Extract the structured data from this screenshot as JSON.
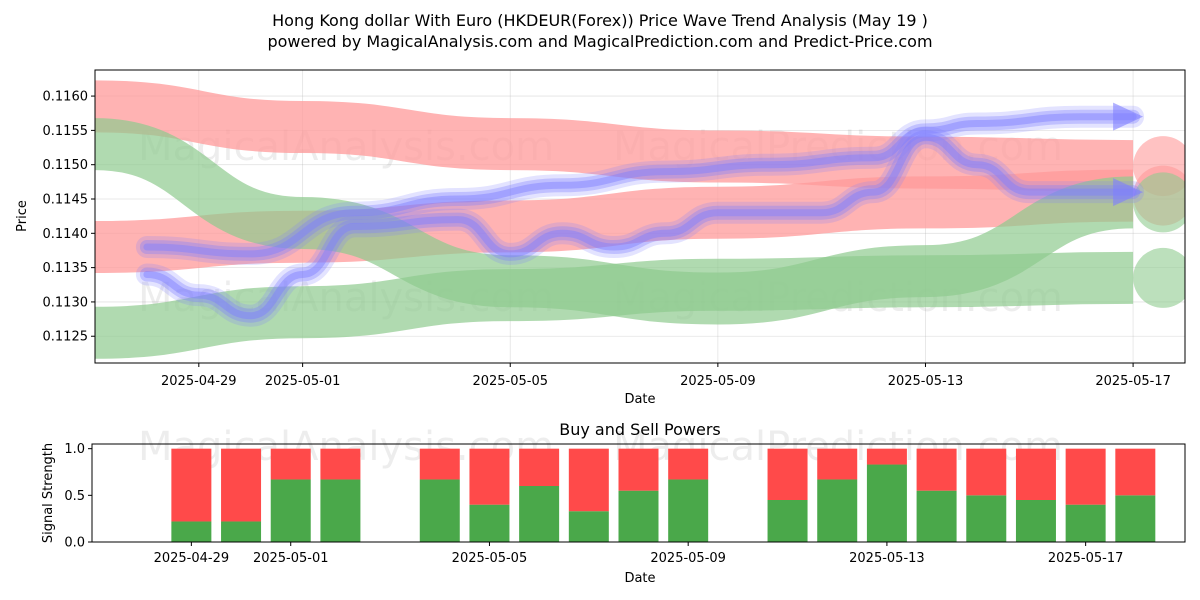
{
  "title_line1": "Hong Kong dollar With Euro (HKDEUR(Forex)) Price Wave Trend Analysis (May 19 )",
  "title_line2": "powered by MagicalAnalysis.com and MagicalPrediction.com and Predict-Price.com",
  "watermarks": [
    "MagicalAnalysis.com",
    "MagicalPrediction.com"
  ],
  "colors": {
    "red_band": "#ff9a9a",
    "green_band": "#8fcb8f",
    "blue_wave": "#7f7fff",
    "buy": "#4aa84a",
    "sell": "#ff4a4a"
  },
  "chart_data": [
    {
      "type": "line",
      "title": "",
      "xlabel": "Date",
      "ylabel": "Price",
      "xlim": [
        "2025-04-27",
        "2025-05-18"
      ],
      "ylim": [
        0.11211,
        0.11638
      ],
      "x_ticks": [
        "2025-04-29",
        "2025-05-01",
        "2025-05-05",
        "2025-05-09",
        "2025-05-13",
        "2025-05-17"
      ],
      "y_ticks": [
        0.1125,
        0.113,
        0.1135,
        0.114,
        0.1145,
        0.115,
        0.1155,
        0.116
      ],
      "y_tick_labels": [
        "0.1125",
        "0.1130",
        "0.1135",
        "0.1140",
        "0.1145",
        "0.1150",
        "0.1155",
        "0.1160"
      ],
      "grid": true,
      "bands": [
        {
          "color": "red",
          "x": [
            "2025-04-27",
            "2025-05-01",
            "2025-05-05",
            "2025-05-09",
            "2025-05-13",
            "2025-05-17"
          ],
          "y": [
            0.11585,
            0.11555,
            0.1153,
            0.11512,
            0.11503,
            0.11498
          ]
        },
        {
          "color": "red",
          "x": [
            "2025-04-27",
            "2025-05-01",
            "2025-05-05",
            "2025-05-09",
            "2025-05-13",
            "2025-05-17"
          ],
          "y": [
            0.1138,
            0.11395,
            0.1141,
            0.1143,
            0.11445,
            0.11455
          ]
        },
        {
          "color": "green",
          "x": [
            "2025-04-27",
            "2025-05-01",
            "2025-05-05",
            "2025-05-09",
            "2025-05-13",
            "2025-05-17"
          ],
          "y": [
            0.1153,
            0.11415,
            0.1133,
            0.11305,
            0.11345,
            0.11445
          ]
        },
        {
          "color": "green",
          "x": [
            "2025-04-27",
            "2025-05-01",
            "2025-05-05",
            "2025-05-09",
            "2025-05-13",
            "2025-05-17"
          ],
          "y": [
            0.11255,
            0.11285,
            0.1131,
            0.11325,
            0.1133,
            0.11335
          ]
        }
      ],
      "series": [
        {
          "x": [
            "2025-04-28",
            "2025-04-29",
            "2025-04-30",
            "2025-05-01",
            "2025-05-02",
            "2025-05-04",
            "2025-05-05",
            "2025-05-06",
            "2025-05-07",
            "2025-05-08",
            "2025-05-09",
            "2025-05-11",
            "2025-05-12",
            "2025-05-13",
            "2025-05-14",
            "2025-05-15",
            "2025-05-16",
            "2025-05-17"
          ],
          "y": [
            0.1134,
            0.1131,
            0.1128,
            0.1134,
            0.1141,
            0.1142,
            0.1137,
            0.114,
            0.1138,
            0.114,
            0.1143,
            0.1143,
            0.1146,
            0.1154,
            0.115,
            0.1146,
            0.1146,
            0.1146
          ]
        },
        {
          "x": [
            "2025-04-28",
            "2025-04-30",
            "2025-05-02",
            "2025-05-04",
            "2025-05-06",
            "2025-05-08",
            "2025-05-10",
            "2025-05-12",
            "2025-05-13",
            "2025-05-14",
            "2025-05-16",
            "2025-05-17"
          ],
          "y": [
            0.1138,
            0.1137,
            0.1143,
            0.1145,
            0.1147,
            0.1149,
            0.115,
            0.1151,
            0.1155,
            0.1156,
            0.1157,
            0.1157
          ]
        }
      ]
    },
    {
      "type": "bar",
      "title": "Buy and Sell Powers",
      "xlabel": "Date",
      "ylabel": "Signal Strength",
      "ylim": [
        0,
        1.05
      ],
      "y_ticks": [
        0.0,
        0.5,
        1.0
      ],
      "y_tick_labels": [
        "0.0",
        "0.5",
        "1.0"
      ],
      "x_ticks": [
        "2025-04-29",
        "2025-05-01",
        "2025-05-05",
        "2025-05-09",
        "2025-05-13",
        "2025-05-17"
      ],
      "categories": [
        "2025-04-29",
        "2025-04-30",
        "2025-05-01",
        "2025-05-02",
        "2025-05-04",
        "2025-05-05",
        "2025-05-06",
        "2025-05-07",
        "2025-05-08",
        "2025-05-09",
        "2025-05-11",
        "2025-05-12",
        "2025-05-13",
        "2025-05-14",
        "2025-05-15",
        "2025-05-16",
        "2025-05-17",
        "2025-05-18"
      ],
      "series": [
        {
          "values": [
            0.22,
            0.22,
            0.67,
            0.67,
            0.67,
            0.4,
            0.6,
            0.33,
            0.55,
            0.67,
            0.45,
            0.67,
            0.83,
            0.55,
            0.5,
            0.45,
            0.4,
            0.5
          ]
        },
        {
          "values": [
            0.78,
            0.78,
            0.33,
            0.33,
            0.33,
            0.6,
            0.4,
            0.67,
            0.45,
            0.33,
            0.55,
            0.33,
            0.17,
            0.45,
            0.5,
            0.55,
            0.6,
            0.5
          ]
        }
      ]
    }
  ]
}
